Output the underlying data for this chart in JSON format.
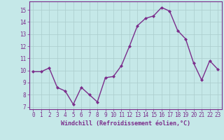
{
  "x": [
    0,
    1,
    2,
    3,
    4,
    5,
    6,
    7,
    8,
    9,
    10,
    11,
    12,
    13,
    14,
    15,
    16,
    17,
    18,
    19,
    20,
    21,
    22,
    23
  ],
  "y": [
    9.9,
    9.9,
    10.2,
    8.6,
    8.3,
    7.2,
    8.6,
    8.0,
    7.4,
    9.4,
    9.5,
    10.4,
    12.0,
    13.7,
    14.3,
    14.5,
    15.2,
    14.9,
    13.3,
    12.6,
    10.6,
    9.2,
    10.8,
    10.1
  ],
  "line_color": "#7B2D8B",
  "marker": "D",
  "marker_size": 2.0,
  "line_width": 1.0,
  "background_color": "#c5e8e8",
  "grid_color": "#aacccc",
  "xlabel": "Windchill (Refroidissement éolien,°C)",
  "xlabel_color": "#7B2D8B",
  "xlabel_fontsize": 6.0,
  "tick_color": "#7B2D8B",
  "tick_fontsize": 5.5,
  "xlim": [
    -0.5,
    23.5
  ],
  "ylim": [
    6.8,
    15.7
  ],
  "yticks": [
    7,
    8,
    9,
    10,
    11,
    12,
    13,
    14,
    15
  ],
  "xticks": [
    0,
    1,
    2,
    3,
    4,
    5,
    6,
    7,
    8,
    9,
    10,
    11,
    12,
    13,
    14,
    15,
    16,
    17,
    18,
    19,
    20,
    21,
    22,
    23
  ]
}
